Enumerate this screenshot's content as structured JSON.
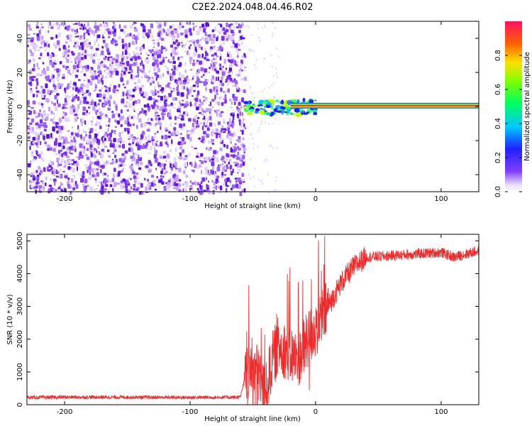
{
  "title": "C2E2.2024.048.04.46.R02",
  "colors": {
    "snr_line": "#ee2a2a",
    "spectrum_noise": "#6a18f0",
    "spectrum_signal_core": "#ff2a1a",
    "frame": "#000000"
  },
  "chart_data": [
    {
      "type": "heatmap",
      "title": "C2E2.2024.048.04.46.R02",
      "xlabel": "Height of straight line (km)",
      "ylabel": "Frequency (Hz)",
      "xlim": [
        -230,
        130
      ],
      "ylim": [
        -50,
        50
      ],
      "x_ticks": [
        -200,
        -100,
        0,
        100
      ],
      "y_ticks": [
        -40,
        -20,
        0,
        20,
        40
      ],
      "colorbar": {
        "label": "Normalized spectral amplitude",
        "range": [
          0,
          1
        ],
        "ticks": [
          0.0,
          0.2,
          0.4,
          0.6,
          0.8
        ],
        "colormap": "rainbow"
      },
      "regions": [
        {
          "x_range": [
            -230,
            -57
          ],
          "description_value": "broadband noise across all frequencies",
          "frequency_range": [
            -50,
            50
          ],
          "amplitude": 0.1
        },
        {
          "x_range": [
            -57,
            0
          ],
          "frequency_range": [
            -8,
            5
          ],
          "amplitude": 0.5
        },
        {
          "x_range": [
            0,
            130
          ],
          "frequency_center": 0.5,
          "amplitude": 1.0
        }
      ]
    },
    {
      "type": "line",
      "xlabel": "Height of straight line (km)",
      "ylabel": "SNR (10 * v/v)",
      "xlim": [
        -230,
        130
      ],
      "ylim": [
        0,
        5200
      ],
      "x_ticks": [
        -200,
        -100,
        0,
        100
      ],
      "y_ticks": [
        0,
        1000,
        2000,
        3000,
        4000,
        5000
      ],
      "series": [
        {
          "x": [
            -230,
            -200,
            -150,
            -100,
            -60,
            -57,
            -50,
            -45,
            -40,
            -35,
            -30,
            -25,
            -20,
            -15,
            -10,
            -5,
            0,
            10,
            20,
            30,
            40,
            60,
            80,
            100,
            110,
            130
          ],
          "y": [
            220,
            230,
            230,
            220,
            230,
            700,
            1200,
            900,
            300,
            1300,
            1800,
            1700,
            1500,
            1400,
            1600,
            2100,
            2300,
            3000,
            3700,
            4200,
            4500,
            4550,
            4600,
            4650,
            4500,
            4700
          ]
        }
      ]
    }
  ]
}
